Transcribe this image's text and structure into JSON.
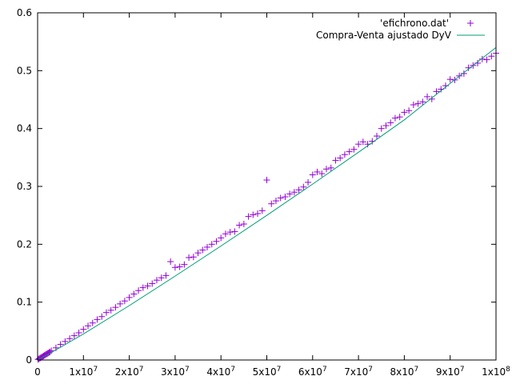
{
  "chart_data": {
    "type": "scatter",
    "title": "",
    "xlabel": "",
    "ylabel": "",
    "xlim": [
      0,
      100000000
    ],
    "ylim": [
      0,
      0.6
    ],
    "grid": false,
    "legend_position": "top-right",
    "x_ticks": [
      {
        "value": 0,
        "base": "0",
        "exp": ""
      },
      {
        "value": 10000000,
        "base": "1x10",
        "exp": "7"
      },
      {
        "value": 20000000,
        "base": "2x10",
        "exp": "7"
      },
      {
        "value": 30000000,
        "base": "3x10",
        "exp": "7"
      },
      {
        "value": 40000000,
        "base": "4x10",
        "exp": "7"
      },
      {
        "value": 50000000,
        "base": "5x10",
        "exp": "7"
      },
      {
        "value": 60000000,
        "base": "6x10",
        "exp": "7"
      },
      {
        "value": 70000000,
        "base": "7x10",
        "exp": "7"
      },
      {
        "value": 80000000,
        "base": "8x10",
        "exp": "7"
      },
      {
        "value": 90000000,
        "base": "9x10",
        "exp": "7"
      },
      {
        "value": 100000000,
        "base": "1x10",
        "exp": "8"
      }
    ],
    "y_ticks": [
      {
        "value": 0,
        "label": "0"
      },
      {
        "value": 0.1,
        "label": "0.1"
      },
      {
        "value": 0.2,
        "label": "0.2"
      },
      {
        "value": 0.3,
        "label": "0.3"
      },
      {
        "value": 0.4,
        "label": "0.4"
      },
      {
        "value": 0.5,
        "label": "0.5"
      },
      {
        "value": 0.6,
        "label": "0.6"
      }
    ],
    "series": [
      {
        "name": "'efichrono.dat'",
        "kind": "points",
        "color": "#9400d3",
        "marker": "plus",
        "x": [
          100000,
          300000,
          500000,
          700000,
          900000,
          1100000,
          1300000,
          1500000,
          1700000,
          1900000,
          2100000,
          2300000,
          2500000,
          2700000,
          3000000,
          4000000,
          5000000,
          6000000,
          7000000,
          8000000,
          9000000,
          10000000,
          11000000,
          12000000,
          13000000,
          14000000,
          15000000,
          16000000,
          17000000,
          18000000,
          19000000,
          20000000,
          21000000,
          22000000,
          23000000,
          24000000,
          25000000,
          26000000,
          27000000,
          28000000,
          29000000,
          30000000,
          31000000,
          32000000,
          33000000,
          34000000,
          35000000,
          36000000,
          37000000,
          38000000,
          39000000,
          40000000,
          41000000,
          42000000,
          43000000,
          44000000,
          45000000,
          46000000,
          47000000,
          48000000,
          49000000,
          50000000,
          51000000,
          52000000,
          53000000,
          54000000,
          55000000,
          56000000,
          57000000,
          58000000,
          59000000,
          60000000,
          61000000,
          62000000,
          63000000,
          64000000,
          65000000,
          66000000,
          67000000,
          68000000,
          69000000,
          70000000,
          71000000,
          72000000,
          73000000,
          74000000,
          75000000,
          76000000,
          77000000,
          78000000,
          79000000,
          80000000,
          81000000,
          82000000,
          83000000,
          84000000,
          85000000,
          86000000,
          87000000,
          88000000,
          89000000,
          90000000,
          91000000,
          92000000,
          93000000,
          94000000,
          95000000,
          96000000,
          97000000,
          98000000,
          99000000,
          100000000
        ],
        "y": [
          0.001,
          0.002,
          0.003,
          0.004,
          0.005,
          0.006,
          0.007,
          0.008,
          0.009,
          0.01,
          0.011,
          0.012,
          0.013,
          0.014,
          0.016,
          0.021,
          0.027,
          0.032,
          0.037,
          0.042,
          0.047,
          0.053,
          0.059,
          0.064,
          0.07,
          0.075,
          0.082,
          0.086,
          0.091,
          0.097,
          0.102,
          0.108,
          0.114,
          0.12,
          0.125,
          0.128,
          0.132,
          0.138,
          0.142,
          0.146,
          0.17,
          0.16,
          0.161,
          0.165,
          0.177,
          0.178,
          0.185,
          0.19,
          0.195,
          0.2,
          0.205,
          0.211,
          0.218,
          0.221,
          0.222,
          0.233,
          0.235,
          0.248,
          0.251,
          0.253,
          0.258,
          0.311,
          0.27,
          0.275,
          0.28,
          0.282,
          0.287,
          0.29,
          0.294,
          0.299,
          0.307,
          0.32,
          0.325,
          0.322,
          0.33,
          0.332,
          0.345,
          0.349,
          0.355,
          0.36,
          0.364,
          0.373,
          0.377,
          0.373,
          0.378,
          0.387,
          0.4,
          0.405,
          0.41,
          0.418,
          0.42,
          0.428,
          0.431,
          0.441,
          0.443,
          0.446,
          0.455,
          0.451,
          0.464,
          0.468,
          0.474,
          0.485,
          0.484,
          0.491,
          0.495,
          0.505,
          0.509,
          0.513,
          0.52,
          0.519,
          0.525,
          0.53
        ]
      },
      {
        "name": "Compra-Venta ajustado DyV",
        "kind": "line",
        "color": "#009e73",
        "x": [
          0,
          5000000,
          10000000,
          20000000,
          30000000,
          40000000,
          50000000,
          60000000,
          70000000,
          80000000,
          90000000,
          100000000
        ],
        "y": [
          0.0,
          0.022,
          0.045,
          0.094,
          0.145,
          0.197,
          0.25,
          0.304,
          0.359,
          0.415,
          0.478,
          0.54
        ]
      }
    ]
  }
}
